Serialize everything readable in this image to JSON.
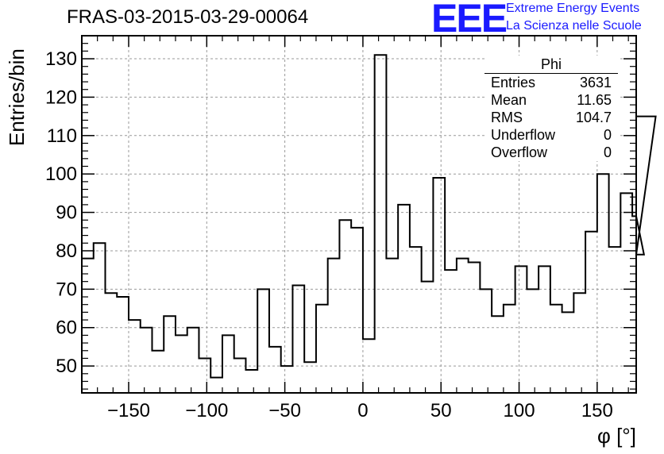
{
  "header": {
    "title": "FRAS-03-2015-03-29-00064",
    "logo": "EEE",
    "logo_line1": "Extreme Energy Events",
    "logo_line2": "La Scienza nelle Scuole"
  },
  "stats_box": {
    "title": "Phi",
    "rows": [
      {
        "label": "Entries",
        "value": "3631"
      },
      {
        "label": "Mean",
        "value": "11.65"
      },
      {
        "label": "RMS",
        "value": "104.7"
      },
      {
        "label": "Underflow",
        "value": "0"
      },
      {
        "label": "Overflow",
        "value": "0"
      }
    ]
  },
  "chart_data": {
    "type": "bar",
    "style": "step-histogram",
    "title": "FRAS-03-2015-03-29-00064",
    "xlabel": "φ [°]",
    "ylabel": "Entries/bin",
    "xlim": [
      -180,
      175
    ],
    "ylim": [
      43,
      136
    ],
    "x_ticks": [
      "−150",
      "−100",
      "−50",
      "0",
      "50",
      "100",
      "150"
    ],
    "x_tick_values": [
      -150,
      -100,
      -50,
      0,
      50,
      100,
      150
    ],
    "y_ticks": [
      "50",
      "60",
      "70",
      "80",
      "90",
      "100",
      "110",
      "120",
      "130"
    ],
    "y_tick_values": [
      50,
      60,
      70,
      80,
      90,
      100,
      110,
      120,
      130
    ],
    "grid": true,
    "bin_width": 7.5,
    "x_start": -180,
    "values": [
      78,
      82,
      69,
      68,
      62,
      60,
      54,
      63,
      58,
      60,
      52,
      47,
      58,
      52,
      49,
      70,
      55,
      50,
      71,
      51,
      66,
      78,
      88,
      86,
      57,
      131,
      78,
      92,
      81,
      72,
      99,
      75,
      78,
      77,
      70,
      63,
      66,
      76,
      70,
      76,
      66,
      64,
      69,
      85,
      100,
      81,
      95,
      89,
      79,
      115
    ]
  }
}
